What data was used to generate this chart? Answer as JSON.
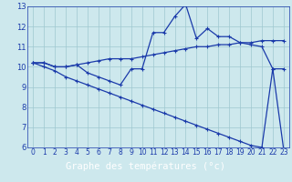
{
  "title": "Graphe des températures (°c)",
  "bg_color": "#cde8ed",
  "grid_color": "#9ec8d0",
  "line_color": "#1a3aaa",
  "xlabel_bg": "#1a3aaa",
  "xlabel_fg": "#ffffff",
  "hours": [
    0,
    1,
    2,
    3,
    4,
    5,
    6,
    7,
    8,
    9,
    10,
    11,
    12,
    13,
    14,
    15,
    16,
    17,
    18,
    19,
    20,
    21,
    22,
    23
  ],
  "series1": [
    10.2,
    10.2,
    10.0,
    10.0,
    10.1,
    10.2,
    10.3,
    10.4,
    10.4,
    10.4,
    10.5,
    10.6,
    10.7,
    10.8,
    10.9,
    11.0,
    11.0,
    11.1,
    11.1,
    11.2,
    11.2,
    11.3,
    11.3,
    11.3
  ],
  "series2": [
    10.2,
    10.2,
    10.0,
    10.0,
    10.1,
    9.7,
    9.5,
    9.3,
    9.1,
    9.9,
    9.9,
    11.7,
    11.7,
    12.5,
    13.1,
    11.4,
    11.9,
    11.5,
    11.5,
    11.2,
    11.1,
    11.0,
    9.9,
    9.9
  ],
  "series3": [
    10.2,
    10.0,
    9.8,
    9.5,
    9.3,
    9.1,
    8.9,
    8.7,
    8.5,
    8.3,
    8.1,
    7.9,
    7.7,
    7.5,
    7.3,
    7.1,
    6.9,
    6.7,
    6.5,
    6.3,
    6.1,
    6.0,
    9.9,
    5.9
  ],
  "ylim": [
    6,
    13
  ],
  "yticks": [
    6,
    7,
    8,
    9,
    10,
    11,
    12,
    13
  ],
  "hours_count": 24,
  "xlabel_fontsize": 7.5,
  "tick_fontsize": 5.5,
  "linewidth": 0.9,
  "markersize": 3.0
}
